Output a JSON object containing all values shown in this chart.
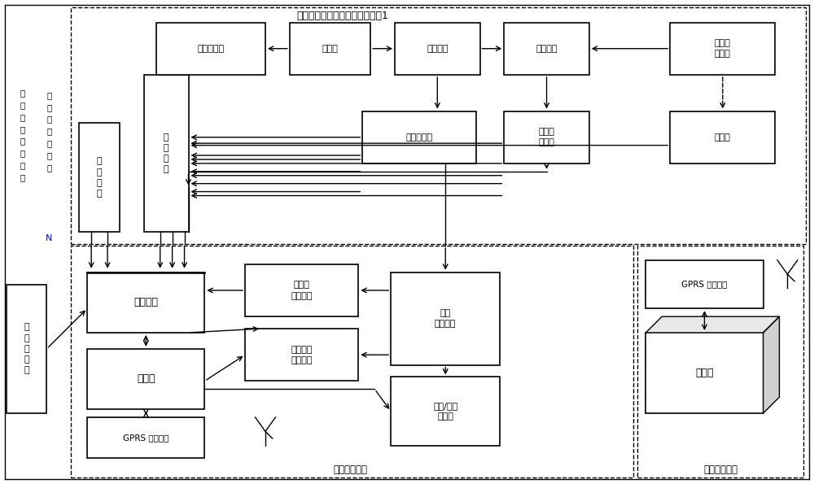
{
  "bg_color": "#ffffff",
  "fig_width": 10.0,
  "fig_height": 5.95,
  "dpi": 100,
  "top_label_title": "叶片式太阳能风能综合发电单元1",
  "left_col1": "太\n阳\n能\n力\n合\n电\n片\n元",
  "left_col2": "阳\n风\n综\n发\n叶\n单\n元",
  "box_jiekou1": "接\n口\n电\n路",
  "box_jiekou2": "接\n口\n电\n路",
  "box_guoling": "过零传感器",
  "box_fadianji": "发电机",
  "box_zhengliu": "整流电路",
  "box_chongdian": "充电电路",
  "box_taiyangneng_dianchi": "太阳能\n电池板",
  "box_fengneng_xudian": "风能蓄电池",
  "box_taiyangneng_xudian": "太阳能\n蓄电池",
  "box_dianciti": "电磁铁",
  "box_wenduchuan": "温\n度\n传\n感\n器",
  "box_kaiguan": "开关阵列",
  "box_kongzhiqi": "控制器",
  "box_gprs_bottom": "GPRS 通信模块",
  "box_xianzhi": "限位器\n电压换向",
  "box_zhileng": "制冷制热\n电压换向",
  "box_chuanlian": "串联\n蓄电池组",
  "box_zhileng_mokuai": "制冷/制热\n模块组",
  "box_gprs_remote": "GPRS 通信模块",
  "box_server": "服务器",
  "label_wendukong": "温度控制单元",
  "label_yuancheng": "远程监控单元"
}
